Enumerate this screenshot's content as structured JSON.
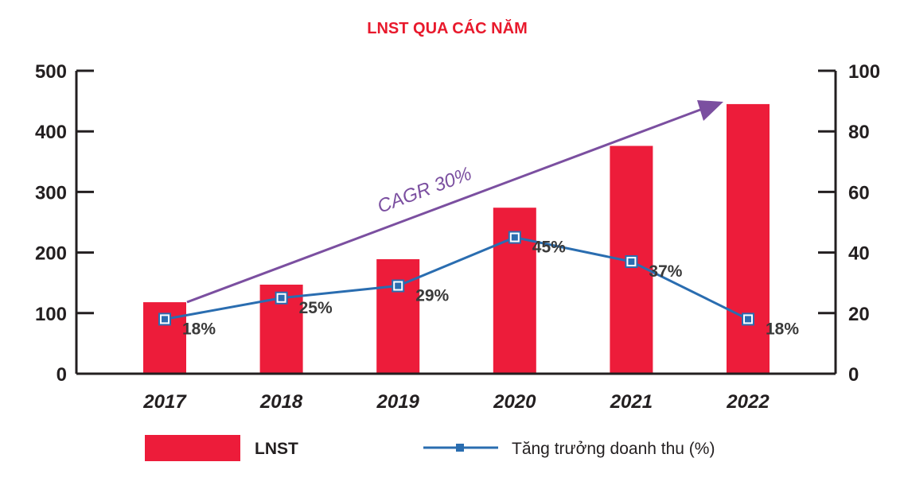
{
  "chart_data": {
    "type": "bar",
    "title": "LNST QUA CÁC NĂM",
    "categories": [
      "2017",
      "2018",
      "2019",
      "2020",
      "2021",
      "2022"
    ],
    "left_axis": {
      "ylim": [
        0,
        500
      ],
      "ticks": [
        "0",
        "100",
        "200",
        "300",
        "400",
        "500"
      ]
    },
    "right_axis": {
      "ylim": [
        0,
        100
      ],
      "ticks": [
        "0",
        "20",
        "40",
        "60",
        "80",
        "100"
      ]
    },
    "series": [
      {
        "name": "LNST",
        "type": "bar",
        "axis": "left",
        "color": "#ed1c3a",
        "values": [
          118,
          147,
          189,
          274,
          376,
          445
        ]
      },
      {
        "name": "Tăng trưởng doanh thu (%)",
        "type": "line",
        "axis": "right",
        "color": "#2a6db0",
        "values": [
          18,
          25,
          29,
          45,
          37,
          18
        ],
        "labels": [
          "18%",
          "25%",
          "29%",
          "45%",
          "37%",
          "18%"
        ]
      }
    ],
    "annotation": {
      "text": "CAGR 30%",
      "color": "#7b4fa0"
    },
    "legend_position": "bottom"
  }
}
